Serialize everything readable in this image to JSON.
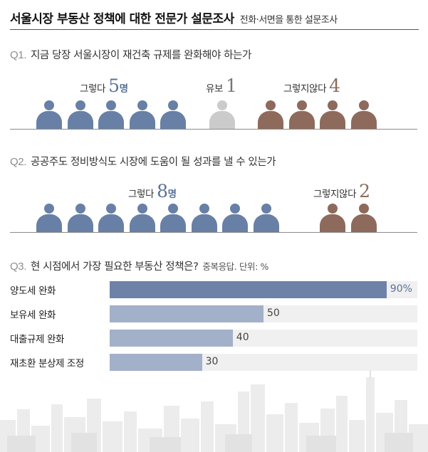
{
  "header": {
    "title": "서울시장 부동산 정책에 대한 전문가 설문조사",
    "subtitle": "전화·서면을 통한 설문조사"
  },
  "q1": {
    "number": "Q1.",
    "text": "지금 당장 서울시장이 재건축 규제를 완화해야 하는가",
    "groups": [
      {
        "label": "그렇다",
        "count": "5",
        "unit": "명"
      },
      {
        "label": "유보",
        "count": "1"
      },
      {
        "label": "그렇지않다",
        "count": "4"
      }
    ]
  },
  "q2": {
    "number": "Q2.",
    "text": "공공주도 정비방식도 시장에 도움이 될 성과를 낼 수 있는가",
    "groups": [
      {
        "label": "그렇다",
        "count": "8",
        "unit": "명"
      },
      {
        "label": "그렇지않다",
        "count": "2"
      }
    ]
  },
  "q3": {
    "number": "Q3.",
    "text": "현 시점에서 가장 필요한 부동산 정책은?",
    "note": "중복응답. 단위: %"
  },
  "colors": {
    "yes": "#6880a6",
    "undecided": "#cbcbcb",
    "no": "#8e6a5d",
    "bar_top": "#6e82a8",
    "bar_rest": "#a3b0c9"
  },
  "chart_data": [
    {
      "type": "pictogram",
      "categories": [
        "그렇다",
        "유보",
        "그렇지않다"
      ],
      "values": [
        5,
        1,
        4
      ]
    },
    {
      "type": "pictogram",
      "categories": [
        "그렇다",
        "그렇지않다"
      ],
      "values": [
        8,
        2
      ]
    },
    {
      "type": "bar",
      "orientation": "horizontal",
      "categories": [
        "양도세 완화",
        "보유세 완화",
        "대출규제 완화",
        "재초환 분상제 조정"
      ],
      "values": [
        90,
        50,
        40,
        30
      ],
      "value_labels": [
        "90%",
        "50",
        "40",
        "30"
      ],
      "xlim": [
        0,
        100
      ],
      "grid": false
    }
  ]
}
